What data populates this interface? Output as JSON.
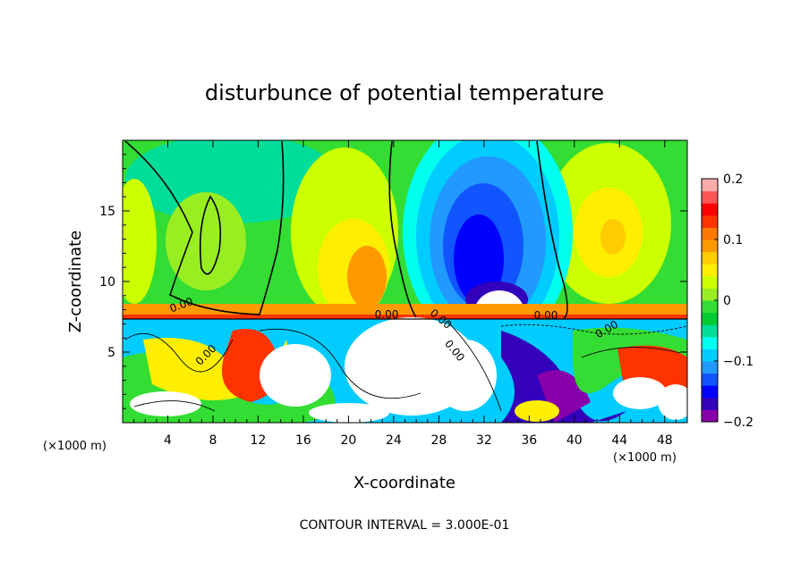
{
  "chart_data": {
    "type": "heatmap",
    "title": "disturbunce of potential temperature",
    "xlabel": "X-coordinate",
    "ylabel": "Z-coordinate",
    "x_unit": "(×1000 m)",
    "x_ticks": [
      4,
      8,
      12,
      16,
      20,
      24,
      28,
      32,
      36,
      40,
      44,
      48
    ],
    "y_ticks": [
      5,
      10,
      15
    ],
    "xlim": [
      0,
      50
    ],
    "ylim": [
      0,
      20
    ],
    "colorbar": {
      "ticks": [
        "0.2",
        "0.1",
        "0",
        "−0.1",
        "−0.2"
      ],
      "range": [
        -0.2,
        0.2
      ],
      "colors": [
        "#8800aa",
        "#3300bb",
        "#0000ff",
        "#1155ff",
        "#2299ff",
        "#00ccff",
        "#00ffee",
        "#00dd99",
        "#00cc33",
        "#33dd33",
        "#99ee22",
        "#ccff00",
        "#ffee00",
        "#ffcc00",
        "#ff9900",
        "#ff7700",
        "#ff3300",
        "#ff0000",
        "#ff5555",
        "#ffaaaa"
      ]
    },
    "contour_labels": [
      "0.00",
      "0.00",
      "0.00",
      "0.00",
      "0.00",
      "0.00",
      "0.00"
    ],
    "footer": "CONTOUR INTERVAL = 3.000E-01"
  }
}
